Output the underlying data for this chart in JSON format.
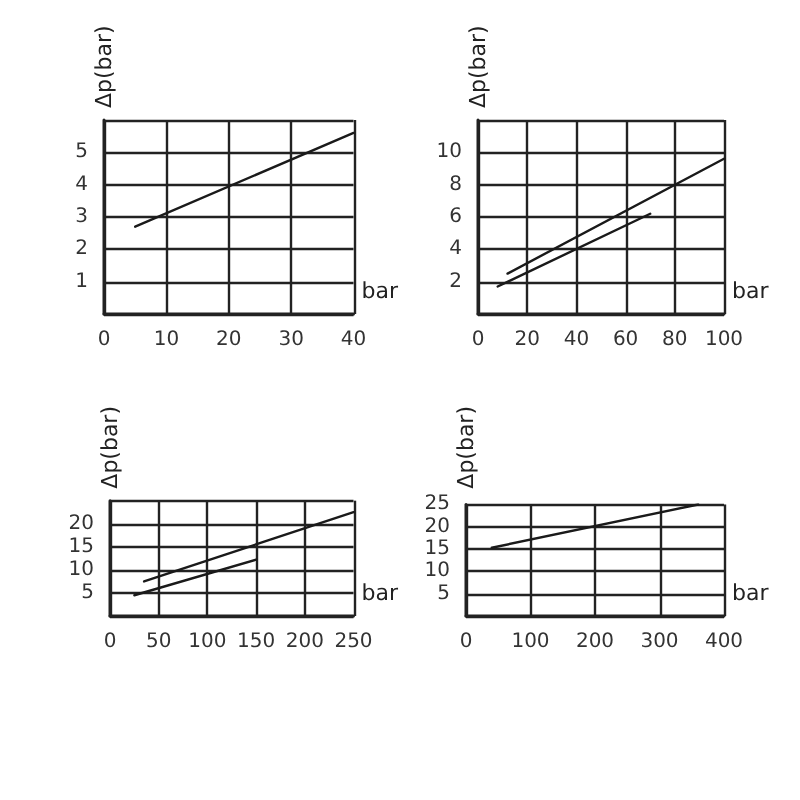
{
  "chart_data": [
    {
      "type": "line",
      "xlabel": "bar",
      "ylabel": "Δp(bar)",
      "xlim": [
        0,
        40
      ],
      "ylim": [
        0,
        6
      ],
      "xticks": [
        0,
        10,
        20,
        30,
        40
      ],
      "yticks": [
        {
          "value": 0,
          "label": null
        },
        1,
        2,
        3,
        4,
        5,
        {
          "value": 6,
          "label": null
        }
      ],
      "grid": true,
      "marker": "none",
      "line_style": "solid",
      "series": [
        {
          "color": "#1a1a1a",
          "x": [
            5,
            40
          ],
          "values": [
            2.7,
            5.6
          ]
        }
      ]
    },
    {
      "type": "line",
      "xlabel": "bar",
      "ylabel": "Δp(bar)",
      "xlim": [
        0,
        100
      ],
      "ylim": [
        0,
        12
      ],
      "xticks": [
        0,
        20,
        40,
        60,
        80,
        100
      ],
      "yticks": [
        {
          "value": 0,
          "label": null
        },
        2,
        4,
        6,
        8,
        10,
        {
          "value": 12,
          "label": null
        }
      ],
      "grid": true,
      "marker": "none",
      "line_style": "solid",
      "series": [
        {
          "color": "#1a1a1a",
          "x": [
            12,
            100
          ],
          "values": [
            2.5,
            9.6
          ]
        },
        {
          "color": "#1a1a1a",
          "x": [
            8,
            70
          ],
          "values": [
            1.7,
            6.2
          ]
        }
      ]
    },
    {
      "type": "line",
      "xlabel": "bar",
      "ylabel": "Δp(bar)",
      "xlim": [
        0,
        250
      ],
      "ylim": [
        0,
        25
      ],
      "xticks": [
        0,
        50,
        100,
        150,
        200,
        250
      ],
      "yticks": [
        {
          "value": 0,
          "label": null
        },
        5,
        10,
        15,
        20,
        {
          "value": 25,
          "label": null
        }
      ],
      "grid": true,
      "marker": "none",
      "line_style": "solid",
      "series": [
        {
          "color": "#1a1a1a",
          "x": [
            35,
            250
          ],
          "values": [
            7.5,
            22.5
          ]
        },
        {
          "color": "#1a1a1a",
          "x": [
            25,
            150
          ],
          "values": [
            4.5,
            12.2
          ]
        }
      ]
    },
    {
      "type": "line",
      "xlabel": "bar",
      "ylabel": "Δp(bar)",
      "xlim": [
        0,
        400
      ],
      "ylim": [
        0,
        25
      ],
      "xticks": [
        0,
        100,
        200,
        300,
        400
      ],
      "yticks": [
        {
          "value": 0,
          "label": null
        },
        5,
        10,
        15,
        20,
        25
      ],
      "grid": true,
      "marker": "none",
      "line_style": "solid",
      "series": [
        {
          "color": "#1a1a1a",
          "x": [
            40,
            360
          ],
          "values": [
            15.3,
            25
          ]
        }
      ]
    }
  ]
}
